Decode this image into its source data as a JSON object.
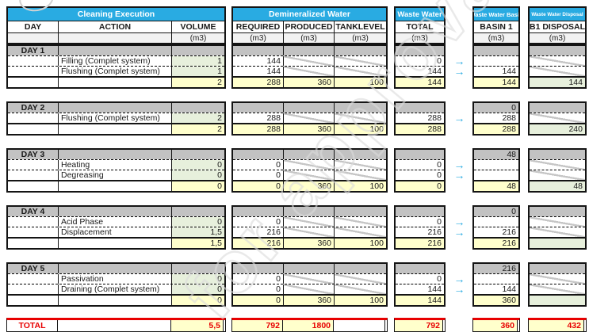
{
  "colors": {
    "accent_cyan": "#29ABE2",
    "day_grey": "#C2C2C2",
    "total_yellow": "#FFFFCC",
    "input_green": "#E7F0DC",
    "grand_total_red": "#FF0000"
  },
  "icons": {
    "right_arrow": "→"
  },
  "watermark": "for approval",
  "sections": {
    "cleaning": {
      "header": "Cleaning Execution",
      "columns": [
        "DAY",
        "ACTION",
        "VOLUME"
      ],
      "units": [
        "",
        "",
        "(m3)"
      ]
    },
    "demin": {
      "header": "Demineralized Water",
      "columns": [
        "REQUIRED",
        "PRODUCED",
        "TANKLEVEL"
      ],
      "units": [
        "(m3)",
        "(m3)",
        "(m3)"
      ]
    },
    "waste": {
      "header": "Waste Water",
      "columns": [
        "TOTAL"
      ],
      "units": [
        "(m3)"
      ]
    },
    "basin": {
      "header": "Waste Water Basin",
      "columns": [
        "BASIN 1"
      ],
      "units": [
        "(m3)"
      ]
    },
    "disposal": {
      "header": "Waste Water Disposal",
      "columns": [
        "B1 DISPOSAL"
      ],
      "units": [
        "(m3)"
      ]
    }
  },
  "days": [
    {
      "label": "DAY 1",
      "basin_carry": "",
      "rows": [
        {
          "action": "Filling (Complet system)",
          "volume": "1",
          "required": "144",
          "waste": "0",
          "basin": ""
        },
        {
          "action": "Flushing (Complet system)",
          "volume": "1",
          "required": "144",
          "waste": "144",
          "basin": "144"
        }
      ],
      "totals": {
        "volume": "2",
        "required": "288",
        "produced": "360",
        "tanklevel": "100",
        "waste": "144",
        "basin": "144",
        "disposal": "144"
      }
    },
    {
      "label": "DAY 2",
      "basin_carry": "0",
      "rows": [
        {
          "action": "Flushing (Complet system)",
          "volume": "2",
          "required": "288",
          "waste": "288",
          "basin": "288"
        }
      ],
      "totals": {
        "volume": "2",
        "required": "288",
        "produced": "360",
        "tanklevel": "100",
        "waste": "288",
        "basin": "288",
        "disposal": "240"
      }
    },
    {
      "label": "DAY 3",
      "basin_carry": "48",
      "rows": [
        {
          "action": "Heating",
          "volume": "0",
          "required": "0",
          "waste": "0",
          "basin": ""
        },
        {
          "action": "Degreasing",
          "volume": "0",
          "required": "0",
          "waste": "0",
          "basin": ""
        }
      ],
      "totals": {
        "volume": "0",
        "required": "0",
        "produced": "360",
        "tanklevel": "100",
        "waste": "0",
        "basin": "48",
        "disposal": "48"
      }
    },
    {
      "label": "DAY 4",
      "basin_carry": "0",
      "rows": [
        {
          "action": "Acid Phase",
          "volume": "0",
          "required": "0",
          "waste": "0",
          "basin": ""
        },
        {
          "action": "Displacement",
          "volume": "1,5",
          "required": "216",
          "waste": "216",
          "basin": "216"
        }
      ],
      "totals": {
        "volume": "1,5",
        "required": "216",
        "produced": "360",
        "tanklevel": "100",
        "waste": "216",
        "basin": "216",
        "disposal": ""
      }
    },
    {
      "label": "DAY 5",
      "basin_carry": "216",
      "rows": [
        {
          "action": "Passivation",
          "volume": "0",
          "required": "0",
          "waste": "0",
          "basin": ""
        },
        {
          "action": "Draining (Complet system)",
          "volume": "0",
          "required": "0",
          "waste": "144",
          "basin": "144"
        }
      ],
      "totals": {
        "volume": "0",
        "required": "0",
        "produced": "360",
        "tanklevel": "100",
        "waste": "144",
        "basin": "360",
        "disposal": ""
      }
    }
  ],
  "grand_total": {
    "label": "TOTAL",
    "volume": "5,5",
    "required": "792",
    "produced": "1800",
    "tanklevel": "",
    "waste": "792",
    "basin": "360",
    "disposal": "432"
  }
}
